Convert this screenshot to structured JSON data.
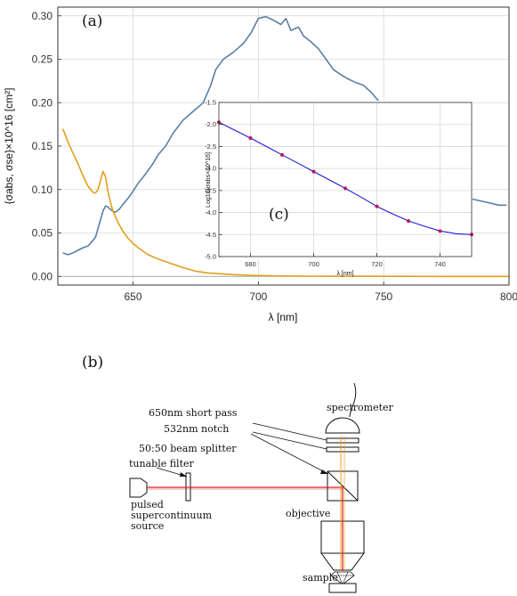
{
  "chart_data": [
    {
      "type": "line",
      "panel_label": "(a)",
      "xlabel": "λ [nm]",
      "ylabel": "{σabs, σse}×10^16 [cm²]",
      "xlim": [
        620,
        800
      ],
      "ylim": [
        -0.01,
        0.31
      ],
      "x_ticks": [
        650,
        700,
        750,
        800
      ],
      "y_ticks": [
        "0.00",
        "0.05",
        "0.10",
        "0.15",
        "0.20",
        "0.25",
        "0.30"
      ],
      "grid": true,
      "series": [
        {
          "color": "#5b7fa6",
          "x": [
            622,
            624,
            626,
            628,
            630,
            632,
            633,
            635,
            636,
            637,
            638,
            639,
            640,
            641,
            642,
            643,
            644,
            645,
            646,
            648,
            650,
            652,
            655,
            658,
            660,
            663,
            666,
            670,
            674,
            678,
            681,
            683,
            686,
            690,
            694,
            697,
            700,
            703,
            706,
            709,
            711,
            713,
            716,
            718,
            721,
            724,
            727,
            730,
            733,
            736,
            739,
            742,
            745,
            748,
            751,
            754,
            757,
            760,
            763,
            766,
            769,
            772,
            775,
            778,
            781,
            784,
            787,
            790,
            793,
            796,
            799
          ],
          "y": [
            0.027,
            0.025,
            0.027,
            0.03,
            0.033,
            0.035,
            0.038,
            0.045,
            0.055,
            0.065,
            0.075,
            0.081,
            0.08,
            0.077,
            0.075,
            0.074,
            0.076,
            0.079,
            0.083,
            0.09,
            0.098,
            0.107,
            0.118,
            0.13,
            0.14,
            0.15,
            0.165,
            0.18,
            0.19,
            0.2,
            0.22,
            0.238,
            0.25,
            0.258,
            0.268,
            0.28,
            0.297,
            0.299,
            0.295,
            0.29,
            0.297,
            0.283,
            0.287,
            0.277,
            0.27,
            0.262,
            0.25,
            0.238,
            0.232,
            0.227,
            0.223,
            0.22,
            0.212,
            0.202,
            0.193,
            0.185,
            0.172,
            0.162,
            0.148,
            0.138,
            0.125,
            0.115,
            0.105,
            0.1,
            0.094,
            0.09,
            0.088,
            0.086,
            0.084,
            0.082,
            0.082
          ]
        },
        {
          "color": "#e0a01c",
          "x": [
            622,
            624,
            626,
            628,
            630,
            632,
            634,
            635,
            636,
            637,
            638,
            639,
            640,
            641,
            642,
            644,
            646,
            648,
            650,
            653,
            656,
            660,
            665,
            670,
            675,
            680,
            685,
            690,
            700,
            710,
            720,
            740,
            760,
            780,
            800
          ],
          "y": [
            0.17,
            0.155,
            0.142,
            0.13,
            0.116,
            0.104,
            0.097,
            0.096,
            0.1,
            0.11,
            0.121,
            0.115,
            0.098,
            0.085,
            0.075,
            0.062,
            0.052,
            0.044,
            0.038,
            0.031,
            0.025,
            0.02,
            0.015,
            0.01,
            0.006,
            0.004,
            0.003,
            0.002,
            0.001,
            0.0005,
            0.0003,
            0.0002,
            0.0001,
            0.0,
            0.0
          ]
        }
      ]
    },
    {
      "type": "line",
      "panel_label": "(c)",
      "xlabel": "λ [nm]",
      "ylabel": "Log10[σabs×10^16]",
      "xlim": [
        670,
        750
      ],
      "ylim": [
        -5.0,
        -1.5
      ],
      "x_ticks": [
        680,
        700,
        720,
        740
      ],
      "y_ticks": [
        "-1.5",
        "-2.0",
        "-2.5",
        "-3.0",
        "-3.5",
        "-4.0",
        "-4.5",
        "-5.0"
      ],
      "grid": true,
      "series": [
        {
          "color": "#1a1ad8",
          "x": [
            670,
            675,
            680,
            685,
            690,
            695,
            700,
            705,
            710,
            715,
            720,
            725,
            730,
            735,
            740,
            745,
            750
          ],
          "y": [
            -1.95,
            -2.13,
            -2.31,
            -2.5,
            -2.69,
            -2.88,
            -3.07,
            -3.26,
            -3.45,
            -3.65,
            -3.86,
            -4.03,
            -4.19,
            -4.31,
            -4.42,
            -4.48,
            -4.5
          ]
        },
        {
          "color": "#c0105a",
          "markers": true,
          "x": [
            670,
            680,
            690,
            700,
            710,
            720,
            730,
            740,
            750
          ],
          "y": [
            -1.95,
            -2.31,
            -2.69,
            -3.07,
            -3.45,
            -3.86,
            -4.19,
            -4.42,
            -4.5
          ]
        }
      ]
    }
  ],
  "diagram": {
    "panel_label": "(b)",
    "labels": {
      "short_pass": "650nm short pass",
      "notch": "532nm notch",
      "splitter": "50:50 beam splitter",
      "spectrometer": "spectrometer",
      "tunable_filter": "tunable filter",
      "source_line1": "pulsed",
      "source_line2": "supercontinuum",
      "source_line3": "source",
      "objective": "objective",
      "sample": "sample"
    },
    "beam_color": "#d42020",
    "beam_return_color": "#e8a020"
  }
}
